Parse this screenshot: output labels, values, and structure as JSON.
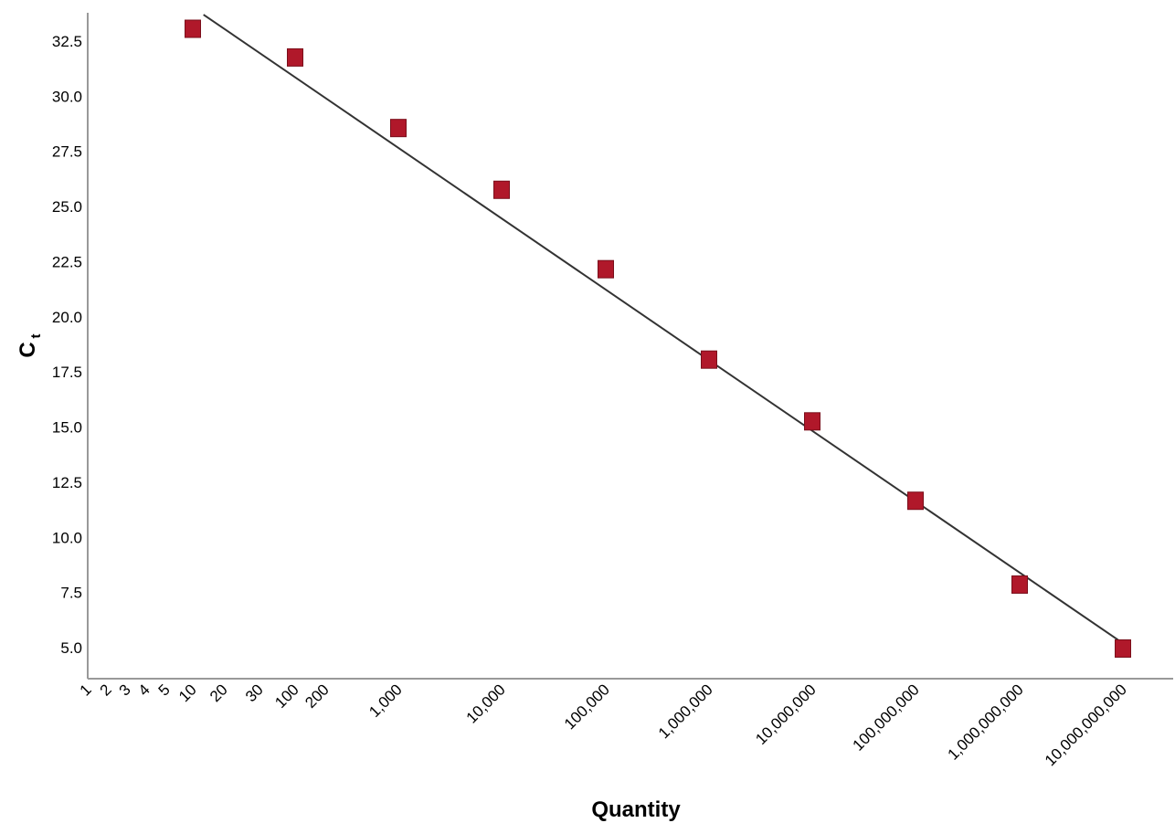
{
  "chart_data": {
    "type": "scatter",
    "title": "",
    "xlabel": "Quantity",
    "ylabel_main": "C",
    "ylabel_sub": "t",
    "x_scale": "log",
    "xlim": [
      1,
      10000000000
    ],
    "ylim": [
      3.6,
      33.7
    ],
    "grid": false,
    "x_ticks": [
      {
        "value": 1,
        "label": "1"
      },
      {
        "value": 2,
        "label": "2"
      },
      {
        "value": 3,
        "label": "3"
      },
      {
        "value": 4,
        "label": "4"
      },
      {
        "value": 5,
        "label": "5"
      },
      {
        "value": 10,
        "label": "10"
      },
      {
        "value": 20,
        "label": "20"
      },
      {
        "value": 30,
        "label": "30"
      },
      {
        "value": 100,
        "label": "100"
      },
      {
        "value": 200,
        "label": "200"
      },
      {
        "value": 1000,
        "label": "1,000"
      },
      {
        "value": 10000,
        "label": "10,000"
      },
      {
        "value": 100000,
        "label": "100,000"
      },
      {
        "value": 1000000,
        "label": "1,000,000"
      },
      {
        "value": 10000000,
        "label": "10,000,000"
      },
      {
        "value": 100000000,
        "label": "100,000,000"
      },
      {
        "value": 1000000000,
        "label": "1,000,000,000"
      },
      {
        "value": 10000000000,
        "label": "10,000,000,000"
      }
    ],
    "y_ticks": [
      {
        "value": 5.0,
        "label": "5.0"
      },
      {
        "value": 7.5,
        "label": "7.5"
      },
      {
        "value": 10.0,
        "label": "10.0"
      },
      {
        "value": 12.5,
        "label": "12.5"
      },
      {
        "value": 15.0,
        "label": "15.0"
      },
      {
        "value": 17.5,
        "label": "17.5"
      },
      {
        "value": 20.0,
        "label": "20.0"
      },
      {
        "value": 22.5,
        "label": "22.5"
      },
      {
        "value": 25.0,
        "label": "25.0"
      },
      {
        "value": 27.5,
        "label": "27.5"
      },
      {
        "value": 30.0,
        "label": "30.0"
      },
      {
        "value": 32.5,
        "label": "32.5"
      }
    ],
    "points": [
      {
        "x": 10,
        "y": 33.1
      },
      {
        "x": 100,
        "y": 31.8
      },
      {
        "x": 1000,
        "y": 28.6
      },
      {
        "x": 10000,
        "y": 25.8
      },
      {
        "x": 100000,
        "y": 22.2
      },
      {
        "x": 1000000,
        "y": 18.1
      },
      {
        "x": 10000000,
        "y": 15.3
      },
      {
        "x": 100000000,
        "y": 11.7
      },
      {
        "x": 1000000000,
        "y": 7.9
      },
      {
        "x": 10000000000,
        "y": 5.0
      }
    ],
    "fit_line": {
      "x_start": 12.7,
      "y_start": 33.7,
      "x_end": 10000000000,
      "y_end": 5.2
    },
    "colors": {
      "marker": "#b0182a",
      "marker_edge": "#7a0f1b",
      "line": "#333333",
      "axis": "#999999"
    }
  }
}
